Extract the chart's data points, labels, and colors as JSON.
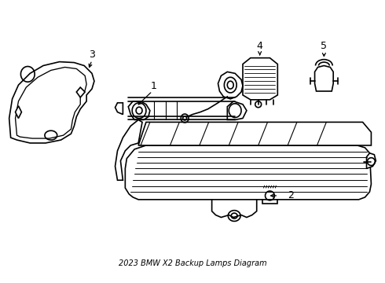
{
  "title": "2023 BMW X2 Backup Lamps Diagram",
  "background_color": "#ffffff",
  "line_color": "#000000",
  "line_width": 1.2,
  "figsize": [
    4.9,
    3.6
  ],
  "dpi": 100
}
